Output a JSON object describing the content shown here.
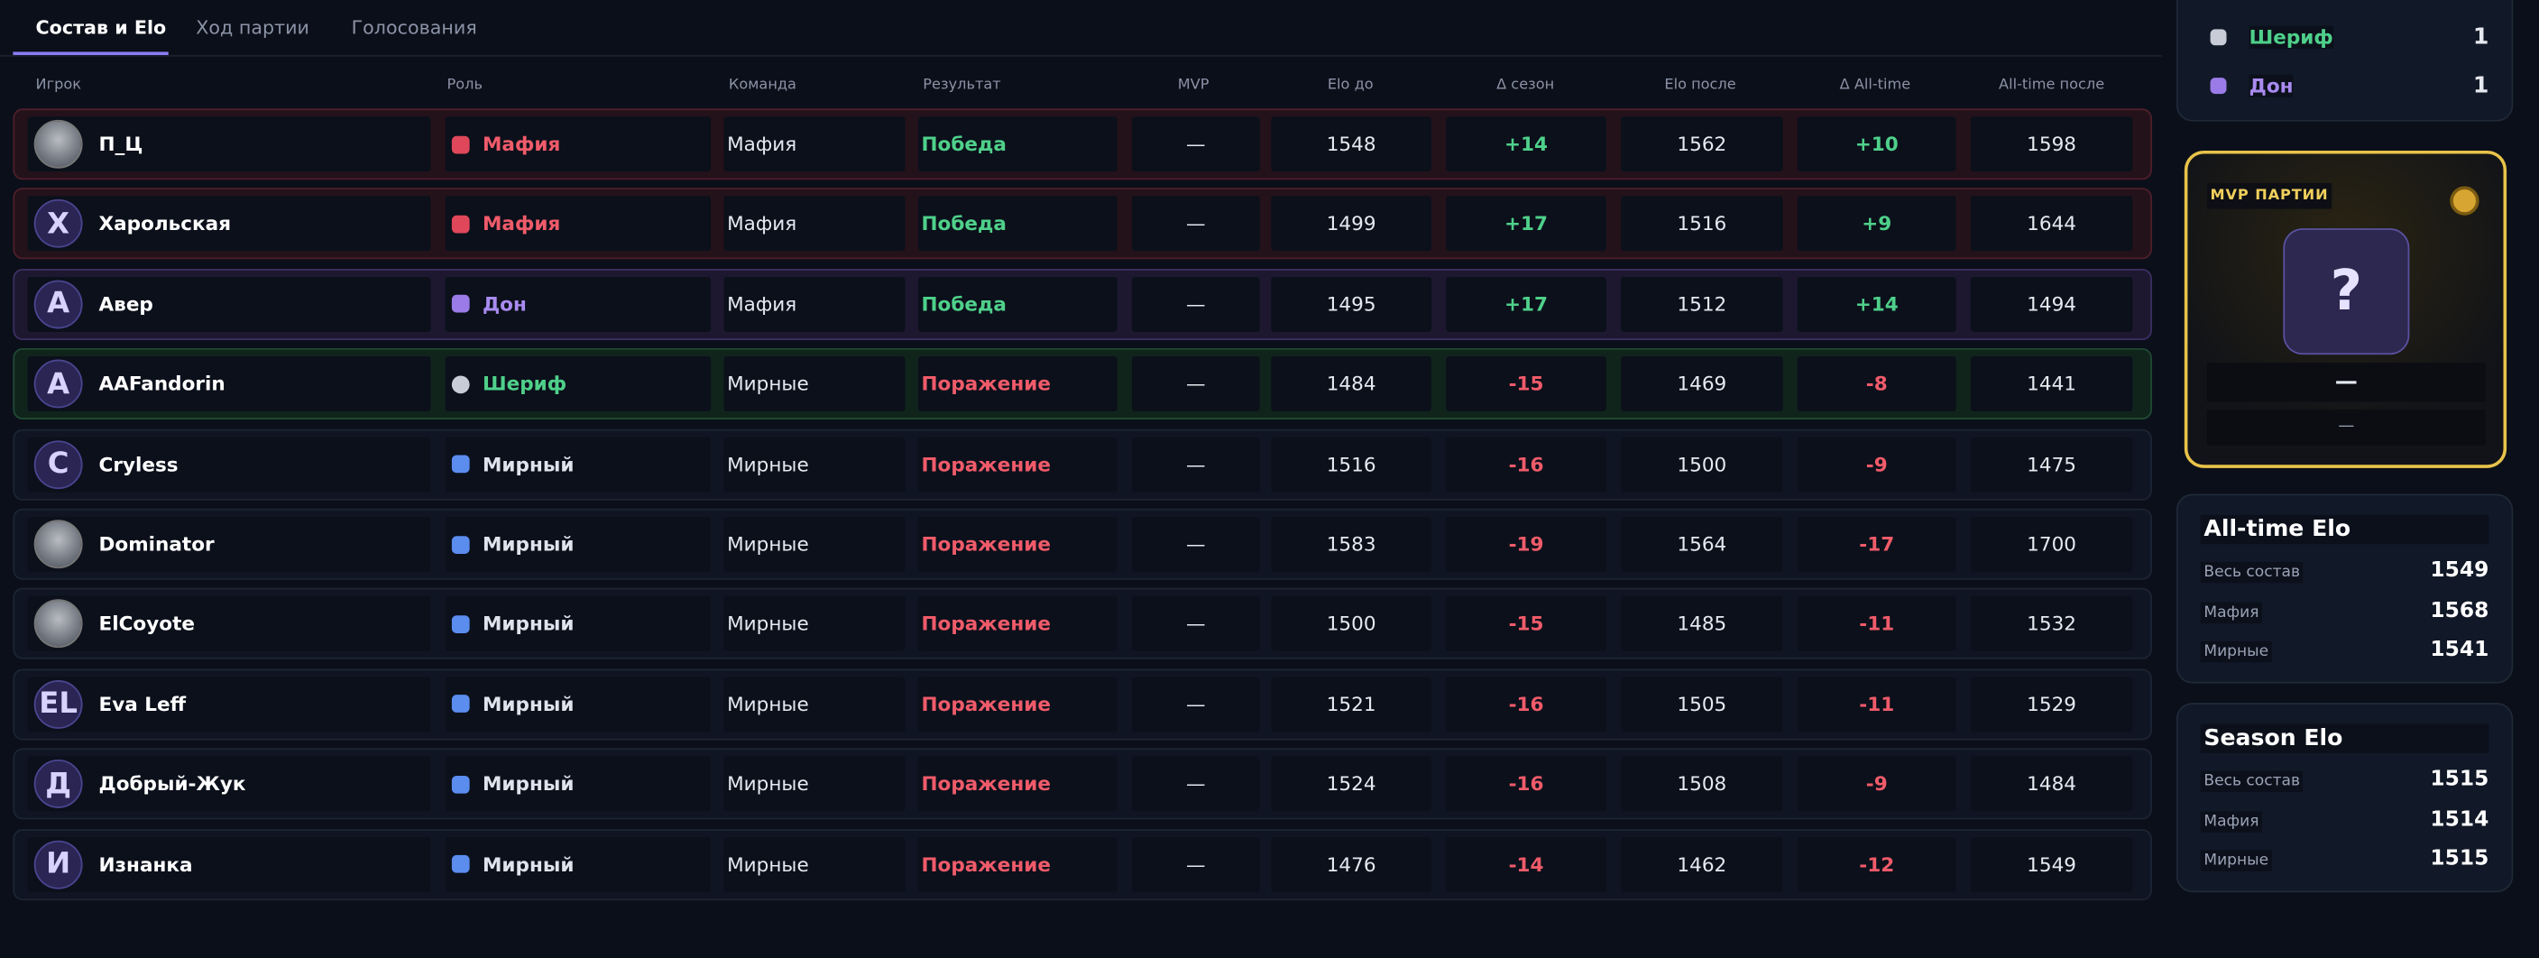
{
  "tabs": [
    "Состав и Elo",
    "Ход партии",
    "Голосования"
  ],
  "table": {
    "columns": [
      "Игрок",
      "Роль",
      "Команда",
      "Результат",
      "MVP",
      "Elo до",
      "Δ сезон",
      "Elo после",
      "Δ All-time",
      "All-time после"
    ],
    "rows": [
      {
        "avatar": null,
        "player": "П_Ц",
        "role": "Мафия",
        "team": "Мафия",
        "result": "Победа",
        "mvp": "—",
        "elo_before": 1548,
        "delta_season": "+14",
        "elo_after": 1562,
        "delta_alltime": "+10",
        "alltime_after": 1598
      },
      {
        "avatar": "Х",
        "player": "Харольская",
        "role": "Мафия",
        "team": "Мафия",
        "result": "Победа",
        "mvp": "—",
        "elo_before": 1499,
        "delta_season": "+17",
        "elo_after": 1516,
        "delta_alltime": "+9",
        "alltime_after": 1644
      },
      {
        "avatar": "А",
        "player": "Авер",
        "role": "Дон",
        "team": "Мафия",
        "result": "Победа",
        "mvp": "—",
        "elo_before": 1495,
        "delta_season": "+17",
        "elo_after": 1512,
        "delta_alltime": "+14",
        "alltime_after": 1494
      },
      {
        "avatar": "А",
        "player": "AAFandorin",
        "role": "Шериф",
        "team": "Мирные",
        "result": "Поражение",
        "mvp": "—",
        "elo_before": 1484,
        "delta_season": "-15",
        "elo_after": 1469,
        "delta_alltime": "-8",
        "alltime_after": 1441
      },
      {
        "avatar": "C",
        "player": "Cryless",
        "role": "Мирный",
        "team": "Мирные",
        "result": "Поражение",
        "mvp": "—",
        "elo_before": 1516,
        "delta_season": "-16",
        "elo_after": 1500,
        "delta_alltime": "-9",
        "alltime_after": 1475
      },
      {
        "avatar": null,
        "player": "Dominator",
        "role": "Мирный",
        "team": "Мирные",
        "result": "Поражение",
        "mvp": "—",
        "elo_before": 1583,
        "delta_season": "-19",
        "elo_after": 1564,
        "delta_alltime": "-17",
        "alltime_after": 1700
      },
      {
        "avatar": null,
        "player": "ElCoyote",
        "role": "Мирный",
        "team": "Мирные",
        "result": "Поражение",
        "mvp": "—",
        "elo_before": 1500,
        "delta_season": "-15",
        "elo_after": 1485,
        "delta_alltime": "-11",
        "alltime_after": 1532
      },
      {
        "avatar": "EL",
        "player": "Eva Leff",
        "role": "Мирный",
        "team": "Мирные",
        "result": "Поражение",
        "mvp": "—",
        "elo_before": 1521,
        "delta_season": "-16",
        "elo_after": 1505,
        "delta_alltime": "-11",
        "alltime_after": 1529
      },
      {
        "avatar": "Д",
        "player": "Добрый-Жук",
        "role": "Мирный",
        "team": "Мирные",
        "result": "Поражение",
        "mvp": "—",
        "elo_before": 1524,
        "delta_season": "-16",
        "elo_after": 1508,
        "delta_alltime": "-9",
        "alltime_after": 1484
      },
      {
        "avatar": "И",
        "player": "Изнанка",
        "role": "Мирный",
        "team": "Мирные",
        "result": "Поражение",
        "mvp": "—",
        "elo_before": 1476,
        "delta_season": "-14",
        "elo_after": 1462,
        "delta_alltime": "-12",
        "alltime_after": 1549
      }
    ]
  },
  "role_counts": [
    {
      "label": "Шериф",
      "count": 1
    },
    {
      "label": "Дон",
      "count": 1
    }
  ],
  "mvp": {
    "title": "MVP ПАРТИИ",
    "placeholder": "?",
    "name": "—",
    "score": "—"
  },
  "elo_cards": [
    {
      "title": "All-time Elo",
      "rows": [
        {
          "label": "Весь состав",
          "value": 1549
        },
        {
          "label": "Мафия",
          "value": 1568
        },
        {
          "label": "Мирные",
          "value": 1541
        }
      ]
    },
    {
      "title": "Season Elo",
      "rows": [
        {
          "label": "Весь состав",
          "value": 1515
        },
        {
          "label": "Мафия",
          "value": 1514
        },
        {
          "label": "Мирные",
          "value": 1515
        }
      ]
    }
  ]
}
